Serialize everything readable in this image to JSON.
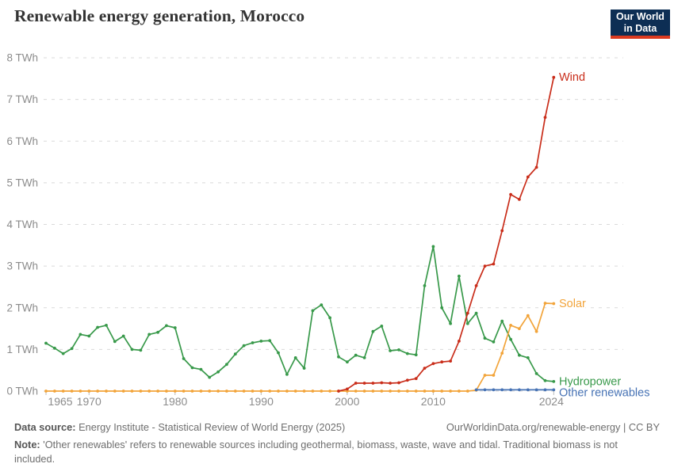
{
  "header": {
    "title": "Renewable energy generation, Morocco"
  },
  "logo": {
    "line1": "Our World",
    "line2": "in Data"
  },
  "chart_data": {
    "type": "line",
    "title": "Renewable energy generation, Morocco",
    "unit": "TWh",
    "grid": "horizontal-dashed",
    "legend_position": "line-end-labels-right",
    "x_range": [
      1965,
      2024
    ],
    "ylim": [
      0,
      8
    ],
    "y_ticks": [
      {
        "value": 0,
        "label": "0 TWh"
      },
      {
        "value": 1,
        "label": "1 TWh"
      },
      {
        "value": 2,
        "label": "2 TWh"
      },
      {
        "value": 3,
        "label": "3 TWh"
      },
      {
        "value": 4,
        "label": "4 TWh"
      },
      {
        "value": 5,
        "label": "5 TWh"
      },
      {
        "value": 6,
        "label": "6 TWh"
      },
      {
        "value": 7,
        "label": "7 TWh"
      },
      {
        "value": 8,
        "label": "8 TWh"
      }
    ],
    "x_ticks": [
      1965,
      1970,
      1980,
      1990,
      2000,
      2010,
      2024
    ],
    "series": [
      {
        "name": "Wind",
        "color": "#c92d1a",
        "start_year": 1999,
        "values": [
          0.0,
          0.05,
          0.19,
          0.19,
          0.19,
          0.2,
          0.19,
          0.2,
          0.26,
          0.3,
          0.55,
          0.66,
          0.7,
          0.72,
          1.2,
          1.87,
          2.53,
          3.0,
          3.05,
          3.85,
          4.72,
          4.6,
          5.14,
          5.37,
          6.57,
          7.53
        ]
      },
      {
        "name": "Solar",
        "color": "#f2a43a",
        "start_year": 1965,
        "values": [
          0,
          0,
          0,
          0,
          0,
          0,
          0,
          0,
          0,
          0,
          0,
          0,
          0,
          0,
          0,
          0,
          0,
          0,
          0,
          0,
          0,
          0,
          0,
          0,
          0,
          0,
          0,
          0,
          0,
          0,
          0,
          0,
          0,
          0,
          0,
          0,
          0,
          0,
          0,
          0,
          0,
          0,
          0,
          0,
          0,
          0,
          0,
          0,
          0,
          0,
          0.02,
          0.38,
          0.38,
          0.91,
          1.58,
          1.5,
          1.81,
          1.43,
          2.11,
          2.1
        ]
      },
      {
        "name": "Hydropower",
        "color": "#38994a",
        "start_year": 1965,
        "values": [
          1.15,
          1.03,
          0.9,
          1.02,
          1.36,
          1.32,
          1.53,
          1.58,
          1.19,
          1.32,
          1.0,
          0.98,
          1.36,
          1.41,
          1.57,
          1.52,
          0.78,
          0.56,
          0.52,
          0.33,
          0.46,
          0.64,
          0.89,
          1.09,
          1.16,
          1.2,
          1.21,
          0.92,
          0.4,
          0.8,
          0.55,
          1.93,
          2.07,
          1.76,
          0.82,
          0.7,
          0.86,
          0.8,
          1.43,
          1.56,
          0.97,
          0.99,
          0.9,
          0.87,
          2.53,
          3.47,
          2.0,
          1.62,
          2.76,
          1.62,
          1.87,
          1.27,
          1.18,
          1.68,
          1.24,
          0.86,
          0.8,
          0.42,
          0.25,
          0.23
        ]
      },
      {
        "name": "Other renewables",
        "color": "#4672b4",
        "start_year": 2015,
        "values": [
          0.03,
          0.03,
          0.03,
          0.03,
          0.03,
          0.03,
          0.03,
          0.03,
          0.03,
          0.03
        ]
      }
    ]
  },
  "footer": {
    "data_source_label": "Data source:",
    "data_source_text": " Energy Institute - Statistical Review of World Energy (2025)",
    "link_text": "OurWorldinData.org/renewable-energy | CC BY",
    "note_label": "Note:",
    "note_text": " 'Other renewables' refers to renewable sources including geothermal, biomass, waste, wave and tidal. Traditional biomass is not included."
  }
}
